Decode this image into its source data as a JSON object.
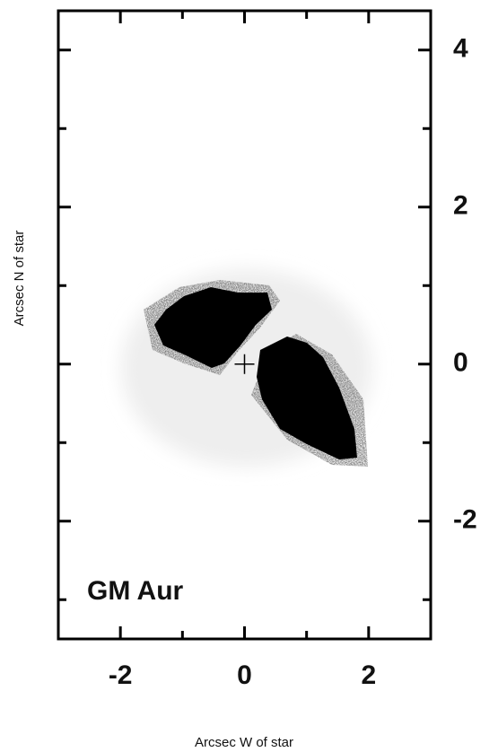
{
  "chart_data": {
    "type": "image",
    "xlabel": "Arcsec W of star",
    "ylabel": "Arcsec N of star",
    "annotation": "GM Aur",
    "xlim": [
      -3,
      3
    ],
    "ylim": [
      -3.5,
      4.5
    ],
    "xticks": [
      -2,
      0,
      2
    ],
    "yticks": [
      -2,
      0,
      2,
      4
    ],
    "xminorticks": [
      -1,
      1
    ],
    "yminorticks": [
      -3,
      -1,
      1,
      3
    ],
    "star": {
      "x": 0,
      "y": 0
    }
  }
}
